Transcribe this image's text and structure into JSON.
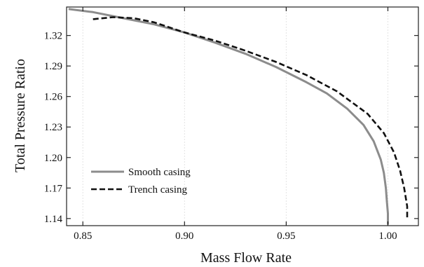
{
  "chart_data": {
    "type": "line",
    "xlabel": "Mass Flow Rate",
    "ylabel": "Total Pressure Ratio",
    "xlim": [
      0.842,
      1.015
    ],
    "ylim": [
      1.133,
      1.348
    ],
    "xticks": [
      0.85,
      0.9,
      0.95,
      1.0
    ],
    "xtick_labels": [
      "0.85",
      "0.90",
      "0.95",
      "1.00"
    ],
    "yticks": [
      1.14,
      1.17,
      1.2,
      1.23,
      1.26,
      1.29,
      1.32
    ],
    "ytick_labels": [
      "1.14",
      "1.17",
      "1.20",
      "1.23",
      "1.26",
      "1.29",
      "1.32"
    ],
    "grid": {
      "vertical": true,
      "horizontal": false
    },
    "legend": {
      "placement": "lower-left"
    },
    "series": [
      {
        "name": "Smooth casing",
        "color": "#8c8c8c",
        "line_style": "solid",
        "x": [
          0.843,
          0.855,
          0.87,
          0.885,
          0.9,
          0.915,
          0.93,
          0.945,
          0.96,
          0.97,
          0.98,
          0.988,
          0.993,
          0.9965,
          0.998,
          0.999,
          0.9995,
          1.0,
          1.0
        ],
        "y": [
          1.346,
          1.343,
          1.337,
          1.331,
          1.323,
          1.313,
          1.302,
          1.289,
          1.274,
          1.263,
          1.248,
          1.232,
          1.216,
          1.198,
          1.185,
          1.17,
          1.157,
          1.145,
          1.134
        ]
      },
      {
        "name": "Trench casing",
        "color": "#111111",
        "line_style": "dashed",
        "x": [
          0.855,
          0.865,
          0.875,
          0.885,
          0.9,
          0.915,
          0.93,
          0.945,
          0.96,
          0.975,
          0.99,
          0.998,
          1.003,
          1.006,
          1.008,
          1.0095,
          1.0095
        ],
        "y": [
          1.336,
          1.338,
          1.337,
          1.333,
          1.323,
          1.315,
          1.305,
          1.294,
          1.281,
          1.265,
          1.243,
          1.224,
          1.205,
          1.187,
          1.17,
          1.152,
          1.139
        ]
      }
    ]
  }
}
